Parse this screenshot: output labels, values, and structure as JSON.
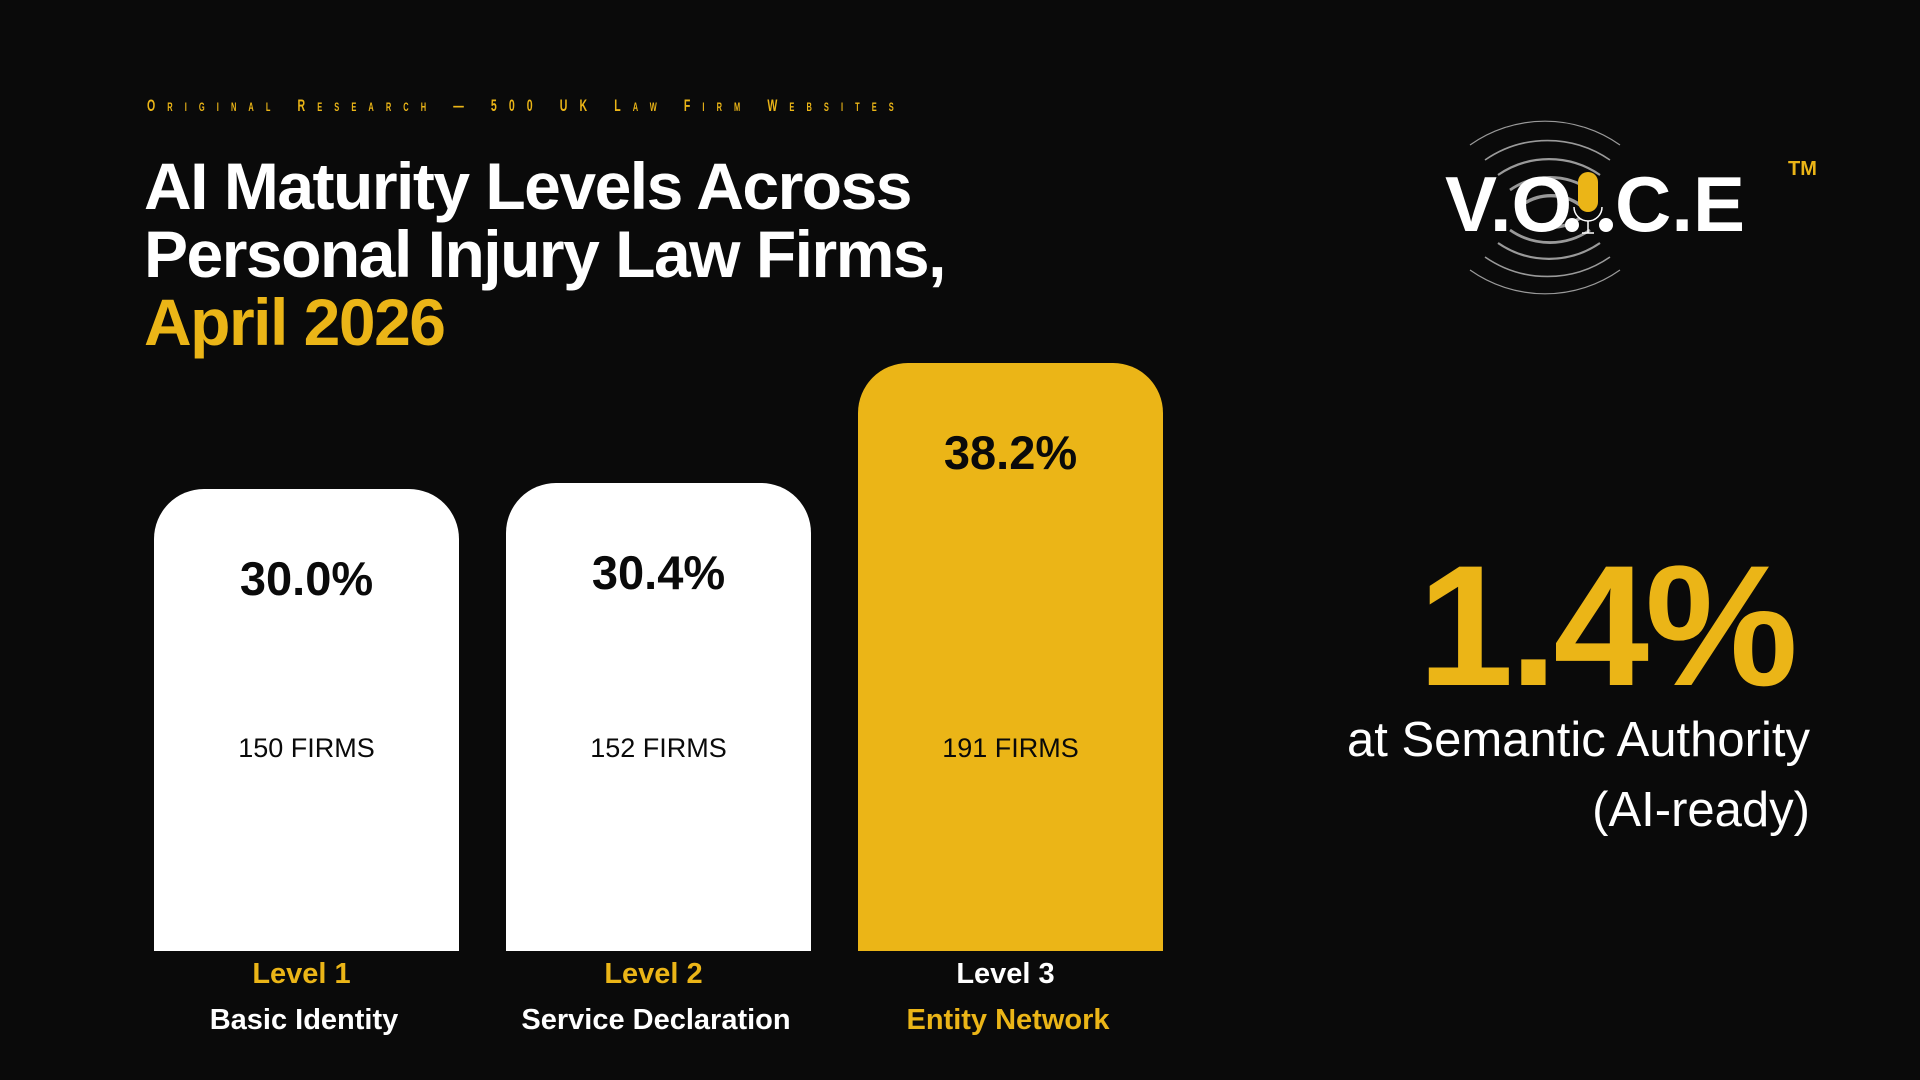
{
  "header": {
    "eyebrow": "Original Research — 500 UK Law Firm Websites",
    "title_line1": "AI Maturity Levels Across",
    "title_line2": "Personal Injury Law Firms,",
    "title_accent": "April 2026"
  },
  "logo": {
    "text": "V.O.I.C.E™",
    "icon": "microphone-sound-waves-icon"
  },
  "colors": {
    "background": "#0a0a0a",
    "accent": "#ebb517",
    "bar": "#ffffff"
  },
  "chart_data": {
    "type": "bar",
    "categories": [
      "Level 1",
      "Level 2",
      "Level 3"
    ],
    "category_names": [
      "Basic Identity",
      "Service Declaration",
      "Entity Network"
    ],
    "values": [
      30.0,
      30.4,
      38.2
    ],
    "value_labels": [
      "30.0%",
      "30.4%",
      "38.2%"
    ],
    "firm_labels": [
      "150 FIRMS",
      "152 FIRMS",
      "191 FIRMS"
    ],
    "firms": [
      150,
      152,
      191
    ],
    "highlighted": [
      false,
      false,
      true
    ],
    "unit": "%",
    "ylim": [
      0,
      38.2
    ],
    "grid": false
  },
  "callout": {
    "value": "1.4%",
    "line1": "at Semantic Authority",
    "line2": "(AI-ready)"
  }
}
